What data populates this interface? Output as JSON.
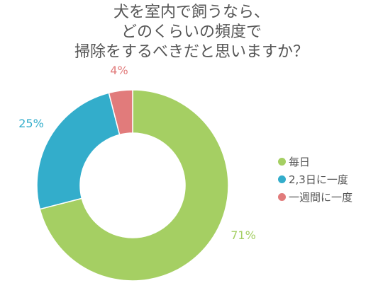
{
  "chart_data": {
    "type": "pie",
    "style": "donut",
    "title_lines": [
      "犬を室内で飼うなら、",
      "どのくらいの頻度で",
      "掃除をするべきだと思いますか？"
    ],
    "categories": [
      "毎日",
      "2,3日に一度",
      "一週間に一度"
    ],
    "values": [
      71,
      25,
      4
    ],
    "labels": [
      "71%",
      "25%",
      "4%"
    ],
    "colors": [
      "#a5cf63",
      "#33adcb",
      "#e17b7b"
    ],
    "legend_position": "right"
  }
}
